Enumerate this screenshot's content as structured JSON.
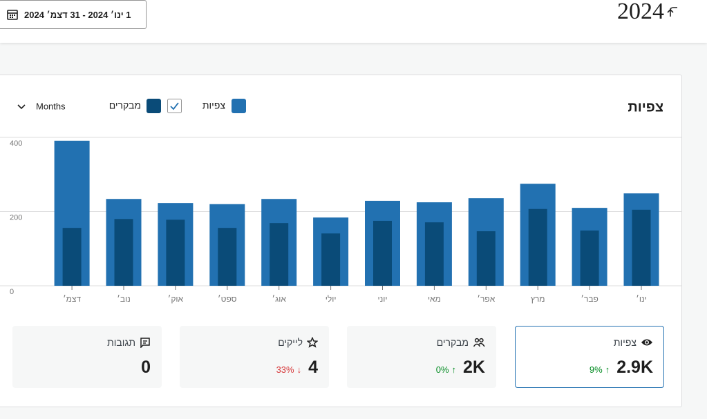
{
  "header": {
    "year": "2024",
    "date_range": "1 ינו׳ 2024 - 31 דצמ׳ 2024"
  },
  "chart_data": {
    "type": "bar",
    "title": "צפיות",
    "period": "Months",
    "categories": [
      "ינו׳",
      "פבר׳",
      "מרץ",
      "אפר׳",
      "מאי",
      "יוני",
      "יולי",
      "אוג׳",
      "ספט׳",
      "אוק׳",
      "נוב׳",
      "דצמ׳"
    ],
    "series": [
      {
        "name": "צפיות",
        "color": "#2271b1",
        "values": [
          249,
          210,
          275,
          236,
          225,
          229,
          184,
          234,
          220,
          223,
          234,
          391
        ]
      },
      {
        "name": "מבקרים",
        "color": "#0a4b78",
        "values": [
          205,
          149,
          207,
          147,
          171,
          175,
          141,
          169,
          156,
          178,
          180,
          156
        ]
      }
    ],
    "ylim": [
      0,
      400
    ],
    "yticks": [
      0,
      200,
      400
    ],
    "grid": true
  },
  "stats": [
    {
      "label": "צפיות",
      "value": "2.9K",
      "change": "9%",
      "arrow": "↑"
    },
    {
      "label": "מבקרים",
      "value": "2K",
      "change": "0%",
      "arrow": "↑"
    },
    {
      "label": "לייקים",
      "value": "4",
      "change": "33%",
      "arrow": "↓"
    },
    {
      "label": "תגובות",
      "value": "0"
    }
  ]
}
